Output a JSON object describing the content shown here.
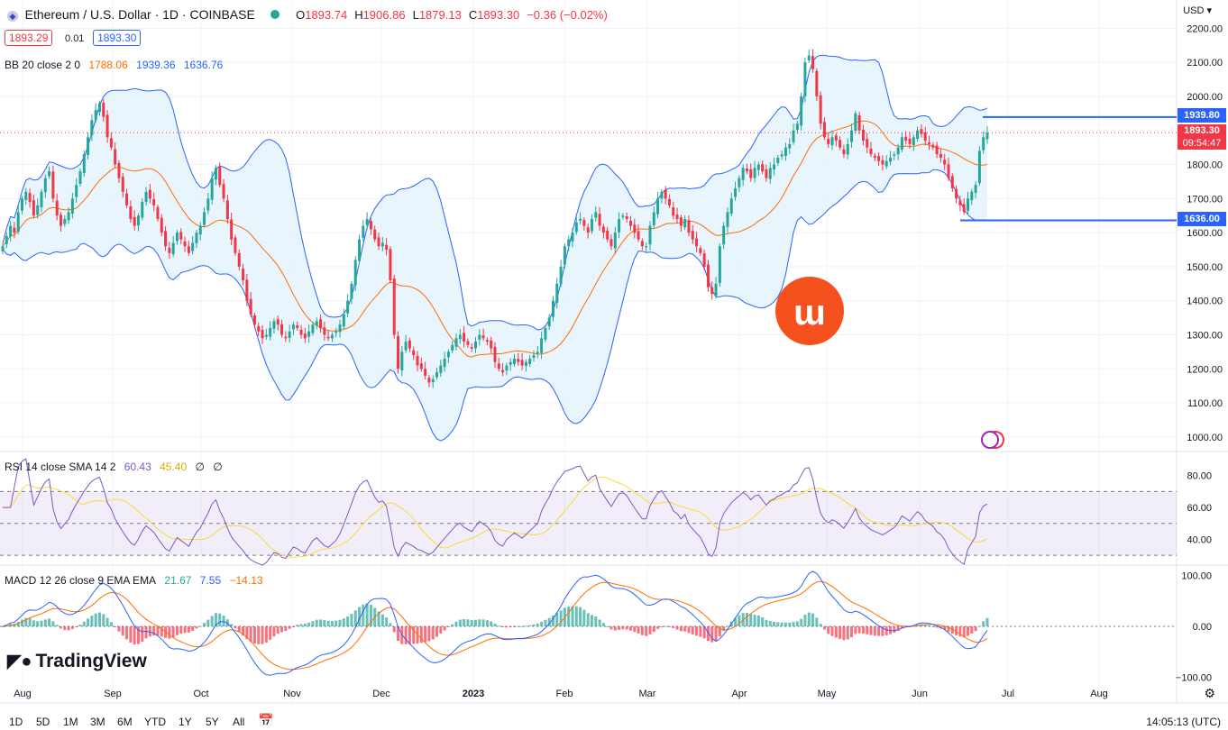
{
  "header": {
    "symbol_title": "Ethereum / U.S. Dollar · 1D · COINBASE",
    "ohlc": [
      {
        "k": "O",
        "v": "1893.74"
      },
      {
        "k": "H",
        "v": "1906.86"
      },
      {
        "k": "L",
        "v": "1879.13"
      },
      {
        "k": "C",
        "v": "1893.30"
      },
      {
        "k": "",
        "v": "−0.36 (−0.02%)"
      }
    ],
    "bid": "1893.29",
    "spread": "0.01",
    "ask": "1893.30",
    "currency": "USD"
  },
  "indicators": {
    "bb": {
      "label": "BB 20 close 2 0",
      "basis": "1788.06",
      "upper": "1939.36",
      "lower": "1636.76"
    },
    "rsi": {
      "label": "RSI 14 close SMA 14 2",
      "rsi": "60.43",
      "sma": "45.40",
      "v3": "∅",
      "v4": "∅"
    },
    "macd": {
      "label": "MACD 12 26 close 9 EMA EMA",
      "hist": "21.67",
      "macd": "7.55",
      "signal": "−14.13"
    }
  },
  "price_tags": {
    "upper": "1939.80",
    "last": "1893.30",
    "countdown": "09:54:47",
    "lower": "1636.00"
  },
  "logo": "TradingView",
  "footer": {
    "timeframes": [
      "1D",
      "5D",
      "1M",
      "3M",
      "6M",
      "YTD",
      "1Y",
      "5Y",
      "All"
    ],
    "clock": "14:05:13 (UTC)"
  },
  "colors": {
    "up": "#26a69a",
    "down": "#f23645",
    "bb_band": "#2962ff",
    "bb_fill": "#e3f2fd",
    "basis": "#ff6d00",
    "rsi_line": "#7e57c2",
    "rsi_sma": "#fdd835",
    "macd": "#2962ff",
    "signal": "#ff6d00",
    "brand": "#f4511e"
  },
  "chart_data": [
    {
      "type": "candlestick",
      "title": "Ethereum / U.S. Dollar · 1D · COINBASE",
      "x_ticks": [
        "Aug",
        "Sep",
        "Oct",
        "Nov",
        "Dec",
        "2023",
        "Feb",
        "Mar",
        "Apr",
        "May",
        "Jun",
        "Jul",
        "Aug"
      ],
      "y_ticks": [
        1000,
        1100,
        1200,
        1300,
        1400,
        1500,
        1600,
        1700,
        1800,
        1900,
        2000,
        2100,
        2200
      ],
      "ylim": [
        960,
        2230
      ],
      "closes": [
        1560,
        1590,
        1620,
        1600,
        1660,
        1700,
        1720,
        1690,
        1650,
        1680,
        1720,
        1760,
        1780,
        1700,
        1650,
        1620,
        1640,
        1660,
        1700,
        1740,
        1780,
        1830,
        1880,
        1930,
        1960,
        1980,
        1940,
        1880,
        1850,
        1800,
        1760,
        1720,
        1680,
        1640,
        1620,
        1650,
        1690,
        1720,
        1700,
        1680,
        1640,
        1600,
        1560,
        1540,
        1570,
        1600,
        1580,
        1560,
        1540,
        1570,
        1600,
        1620,
        1660,
        1700,
        1760,
        1790,
        1740,
        1700,
        1640,
        1580,
        1540,
        1500,
        1460,
        1400,
        1360,
        1330,
        1310,
        1290,
        1300,
        1320,
        1340,
        1330,
        1300,
        1290,
        1310,
        1330,
        1320,
        1300,
        1290,
        1310,
        1330,
        1340,
        1320,
        1300,
        1290,
        1300,
        1310,
        1330,
        1360,
        1400,
        1450,
        1520,
        1580,
        1620,
        1640,
        1610,
        1580,
        1560,
        1570,
        1550,
        1460,
        1300,
        1200,
        1250,
        1280,
        1260,
        1240,
        1210,
        1200,
        1180,
        1160,
        1170,
        1190,
        1210,
        1230,
        1250,
        1270,
        1290,
        1300,
        1280,
        1270,
        1260,
        1280,
        1300,
        1290,
        1280,
        1260,
        1220,
        1200,
        1190,
        1210,
        1220,
        1230,
        1220,
        1210,
        1220,
        1230,
        1240,
        1250,
        1290,
        1320,
        1350,
        1400,
        1450,
        1500,
        1560,
        1580,
        1600,
        1630,
        1640,
        1620,
        1600,
        1640,
        1660,
        1620,
        1600,
        1580,
        1560,
        1600,
        1640,
        1650,
        1640,
        1620,
        1600,
        1580,
        1560,
        1560,
        1620,
        1660,
        1700,
        1720,
        1700,
        1680,
        1650,
        1640,
        1620,
        1640,
        1600,
        1580,
        1560,
        1540,
        1500,
        1440,
        1420,
        1450,
        1560,
        1620,
        1660,
        1700,
        1730,
        1760,
        1790,
        1780,
        1760,
        1790,
        1800,
        1780,
        1760,
        1790,
        1800,
        1820,
        1830,
        1850,
        1860,
        1900,
        1920,
        2000,
        2100,
        2120,
        2080,
        2000,
        1920,
        1880,
        1860,
        1880,
        1870,
        1850,
        1830,
        1860,
        1900,
        1950,
        1900,
        1870,
        1850,
        1830,
        1820,
        1810,
        1800,
        1810,
        1820,
        1830,
        1850,
        1880,
        1870,
        1860,
        1880,
        1900,
        1890,
        1870,
        1860,
        1850,
        1830,
        1820,
        1800,
        1760,
        1730,
        1700,
        1680,
        1660,
        1700,
        1720,
        1740,
        1840,
        1880,
        1893.3
      ],
      "last_price": 1893.3,
      "bollinger": {
        "length": 20,
        "mult": 2,
        "upper": 1939.36,
        "basis": 1788.06,
        "lower": 1636.76
      }
    },
    {
      "type": "line",
      "title": "RSI 14 close SMA 14 2",
      "y_ticks": [
        40,
        60,
        80
      ],
      "ylim": [
        25,
        90
      ],
      "bands": [
        30,
        50,
        70
      ],
      "series": [
        {
          "name": "RSI",
          "last": 60.43
        },
        {
          "name": "SMA",
          "last": 45.4
        }
      ]
    },
    {
      "type": "bar",
      "title": "MACD 12 26 close 9 EMA EMA",
      "y_ticks": [
        -100,
        0,
        100
      ],
      "ylim": [
        -115,
        115
      ],
      "series": [
        {
          "name": "Histogram",
          "last": 21.67
        },
        {
          "name": "MACD",
          "last": 7.55
        },
        {
          "name": "Signal",
          "last": -14.13
        }
      ]
    }
  ]
}
